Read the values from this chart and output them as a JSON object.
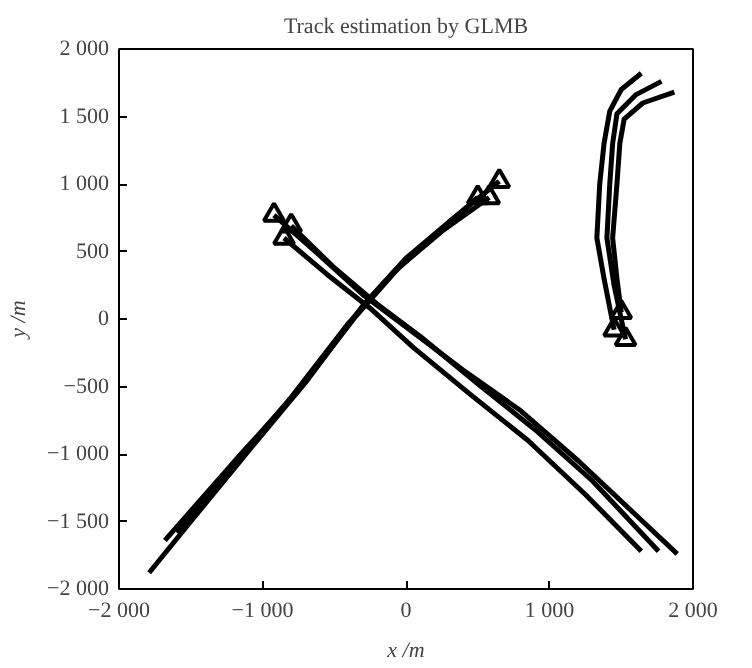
{
  "chart_data": {
    "type": "line",
    "title": "Track estimation by GLMB",
    "xlabel": "x /m",
    "ylabel": "y /m",
    "xlim": [
      -2000,
      2000
    ],
    "ylim": [
      -2000,
      2000
    ],
    "grid": false,
    "marker": "none",
    "line_style": "solid",
    "xticks": [
      {
        "value": -2000,
        "label": "−2 000"
      },
      {
        "value": -1000,
        "label": "−1 000"
      },
      0,
      {
        "value": 1000,
        "label": "1 000"
      },
      {
        "value": 2000,
        "label": "2 000"
      }
    ],
    "yticks": [
      {
        "value": -2000,
        "label": "−2 000"
      },
      {
        "value": -1500,
        "label": "−1 500"
      },
      {
        "value": -1000,
        "label": "−1 000"
      },
      {
        "value": -500,
        "label": "−500"
      },
      0,
      500,
      {
        "value": 1000,
        "label": "1 000"
      },
      {
        "value": 1500,
        "label": "1 500"
      },
      {
        "value": 2000,
        "label": "2 000"
      }
    ],
    "series": [
      {
        "color": "#000000",
        "x": [
          -920,
          -600,
          -300,
          0,
          400,
          800,
          1200,
          1600,
          1890
        ],
        "values": [
          770,
          470,
          180,
          -60,
          -380,
          -680,
          -1050,
          -1450,
          -1740
        ]
      },
      {
        "color": "#000000",
        "x": [
          -800,
          -500,
          -200,
          100,
          500,
          900,
          1300,
          1760
        ],
        "values": [
          690,
          380,
          110,
          -130,
          -480,
          -820,
          -1200,
          -1720
        ]
      },
      {
        "color": "#000000",
        "x": [
          -850,
          -550,
          -250,
          50,
          450,
          850,
          1250,
          1640
        ],
        "values": [
          600,
          330,
          80,
          -210,
          -560,
          -900,
          -1300,
          -1720
        ]
      },
      {
        "color": "#000000",
        "x": [
          650,
          300,
          0,
          -300,
          -700,
          -1100,
          -1500,
          -1790
        ],
        "values": [
          1020,
          720,
          450,
          100,
          -470,
          -980,
          -1500,
          -1880
        ]
      },
      {
        "color": "#000000",
        "x": [
          580,
          250,
          -50,
          -350,
          -750,
          -1150,
          -1680
        ],
        "values": [
          900,
          650,
          380,
          20,
          -530,
          -1000,
          -1640
        ]
      },
      {
        "color": "#000000",
        "x": [
          500,
          200,
          -100,
          -400,
          -800,
          -1200,
          -1600
        ],
        "values": [
          900,
          620,
          330,
          -30,
          -580,
          -1080,
          -1580
        ]
      },
      {
        "color": "#000000",
        "x": [
          1450,
          1380,
          1330,
          1350,
          1380,
          1420,
          1500,
          1640
        ],
        "values": [
          -80,
          300,
          600,
          1000,
          1300,
          1540,
          1700,
          1820
        ]
      },
      {
        "color": "#000000",
        "x": [
          1530,
          1450,
          1400,
          1420,
          1440,
          1470,
          1600,
          1780
        ],
        "values": [
          -150,
          250,
          600,
          1000,
          1300,
          1520,
          1660,
          1760
        ]
      },
      {
        "color": "#000000",
        "x": [
          1500,
          1470,
          1440,
          1470,
          1490,
          1520,
          1650,
          1870
        ],
        "values": [
          50,
          300,
          600,
          1000,
          1300,
          1480,
          1600,
          1680
        ]
      },
      {
        "type": "scatter",
        "marker": "triangle",
        "color": "#000000",
        "x": [
          -920,
          -800,
          -850,
          650,
          580,
          500,
          1450,
          1530,
          1500
        ],
        "values": [
          770,
          690,
          600,
          1020,
          900,
          900,
          -80,
          -150,
          50
        ]
      }
    ]
  }
}
